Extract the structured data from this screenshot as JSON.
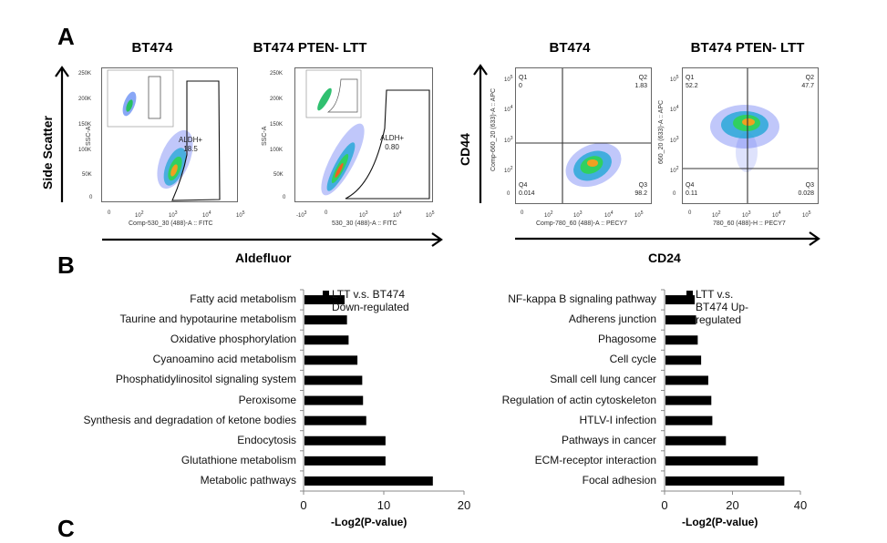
{
  "panels": {
    "a_label": "A",
    "b_label": "B",
    "c_label": "C"
  },
  "aldefluor": {
    "y_label": "Side Scatter",
    "x_label": "Aldefluor",
    "plots": [
      {
        "title": "BT474",
        "y_axis_label": "SSC-A",
        "x_axis_label": "Comp-530_30 (488)-A :: FITC",
        "y_ticks": [
          "250K",
          "200K",
          "150K",
          "100K",
          "50K",
          "0"
        ],
        "x_ticks": [
          "0",
          "10^2",
          "10^3",
          "10^4",
          "10^5"
        ],
        "gate_name": "ALDH+",
        "gate_value": "18.5"
      },
      {
        "title": "BT474 PTEN- LTT",
        "y_axis_label": "SSC-A",
        "x_axis_label": "530_30 (488)-A :: FITC",
        "y_ticks": [
          "250K",
          "200K",
          "150K",
          "100K",
          "50K",
          "0"
        ],
        "x_ticks": [
          "-10^3",
          "0",
          "10^3",
          "10^4",
          "10^5"
        ],
        "gate_name": "ALDH+",
        "gate_value": "0.80"
      }
    ]
  },
  "cd44_cd24": {
    "y_label": "CD44",
    "x_label": "CD24",
    "plots": [
      {
        "title": "BT474",
        "y_axis_label": "Comp-660_20 (633)-A :: APC",
        "x_axis_label": "Comp-780_60 (488)-A :: PECY7",
        "y_ticks": [
          "10^5",
          "10^4",
          "10^3",
          "10^2",
          "0"
        ],
        "x_ticks": [
          "0",
          "10^2",
          "10^3",
          "10^4",
          "10^5"
        ],
        "quadrants": {
          "Q1": "0",
          "Q2": "1.83",
          "Q3": "98.2",
          "Q4": "0.014"
        }
      },
      {
        "title": "BT474 PTEN- LTT",
        "y_axis_label": "660_20 (633)-A :: APC",
        "x_axis_label": "780_60 (488)-H :: PECY7",
        "y_ticks": [
          "10^5",
          "10^4",
          "10^3",
          "10^2",
          "0"
        ],
        "x_ticks": [
          "0",
          "10^2",
          "10^3",
          "10^4",
          "10^5"
        ],
        "quadrants": {
          "Q1": "52.2",
          "Q2": "47.7",
          "Q3": "0.028",
          "Q4": "0.11"
        }
      }
    ]
  },
  "chart_data": [
    {
      "type": "bar",
      "orientation": "horizontal",
      "title": "",
      "xlabel": "-Log2(P-value)",
      "ylabel": "",
      "xlim": [
        0,
        20
      ],
      "x_ticks": [
        "0",
        "10",
        "20"
      ],
      "legend": "LTT v.s. BT474 Down-regulated",
      "legend_lines": [
        "LTT v.s. BT474",
        "Down-regulated"
      ],
      "legend_position": "top-right",
      "grid": false,
      "categories": [
        "Fatty acid metabolism",
        "Taurine and hypotaurine metabolism",
        "Oxidative phosphorylation",
        "Cyanoamino acid metabolism",
        "Phosphatidylinositol signaling system",
        "Peroxisome",
        "Synthesis and degradation of ketone bodies",
        "Endocytosis",
        "Glutathione metabolism",
        "Metabolic pathways"
      ],
      "values": [
        5.0,
        5.3,
        5.5,
        6.6,
        7.2,
        7.3,
        7.7,
        10.1,
        10.1,
        16.0
      ]
    },
    {
      "type": "bar",
      "orientation": "horizontal",
      "title": "",
      "xlabel": "-Log2(P-value)",
      "ylabel": "",
      "xlim": [
        0,
        40
      ],
      "x_ticks": [
        "0",
        "20",
        "40"
      ],
      "legend": "LTT v.s. BT474 Up-regulated",
      "legend_lines": [
        "LTT v.s.",
        "BT474 Up-",
        "regulated"
      ],
      "legend_position": "top-right",
      "grid": false,
      "categories": [
        "NF-kappa B signaling pathway",
        "Adherens junction",
        "Phagosome",
        "Cell cycle",
        "Small cell lung cancer",
        "Regulation of actin cytoskeleton",
        "HTLV-I infection",
        "Pathways in cancer",
        "ECM-receptor interaction",
        "Focal adhesion"
      ],
      "values": [
        8.6,
        9.0,
        9.5,
        10.5,
        12.6,
        13.5,
        13.8,
        17.8,
        27.2,
        35.0
      ]
    }
  ]
}
